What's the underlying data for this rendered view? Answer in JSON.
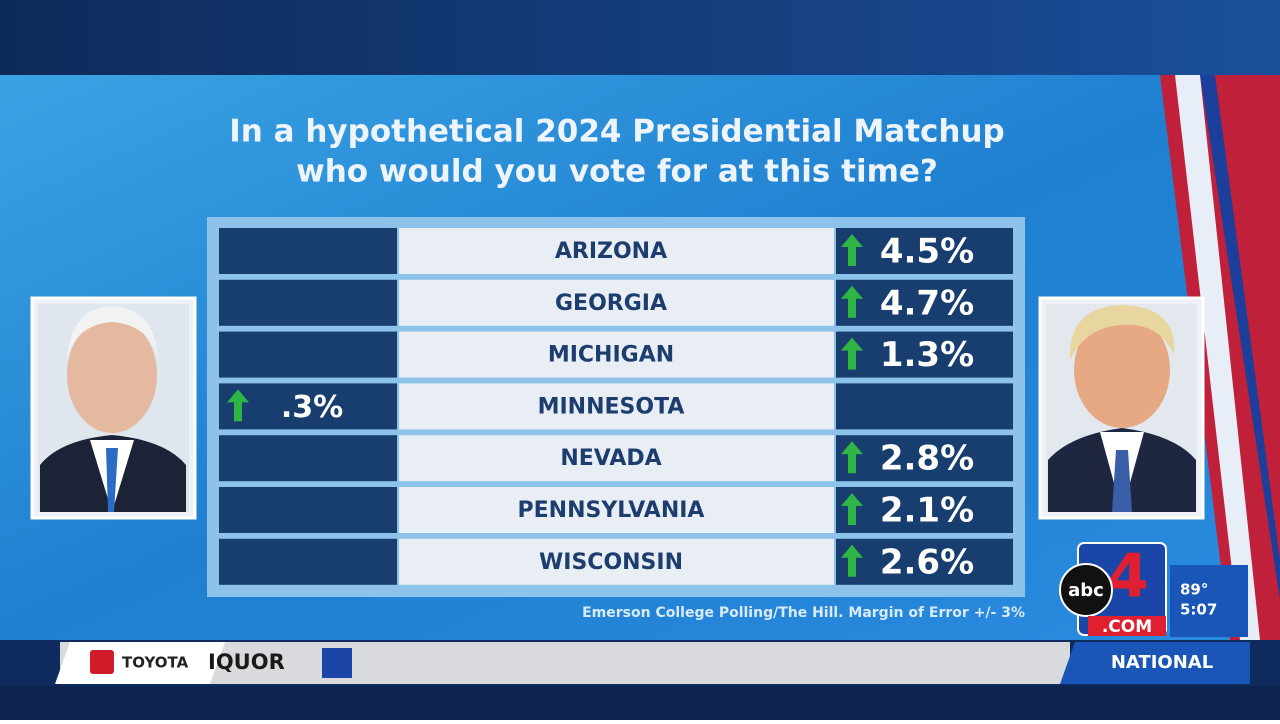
{
  "title": [
    "In a hypothetical 2024 Presidential Matchup",
    "who would you vote for at this time?"
  ],
  "table": {
    "rows": [
      {
        "state": "ARIZONA",
        "right": "4.5%"
      },
      {
        "state": "GEORGIA",
        "right": "4.7%"
      },
      {
        "state": "MICHIGAN",
        "right": "1.3%"
      },
      {
        "state": "MINNESOTA",
        "left": ".3%"
      },
      {
        "state": "NEVADA",
        "right": "2.8%"
      },
      {
        "state": "PENNSYLVANIA",
        "right": "2.1%"
      },
      {
        "state": "WISCONSIN",
        "right": "2.6%"
      }
    ]
  },
  "source": "Emerson College Polling/The Hill. Margin of Error +/- 3%",
  "logo": {
    "network": "abc",
    "channel": "4",
    "site": ".COM"
  },
  "weather": {
    "temp": "89°",
    "time": "5:07"
  },
  "ticker": {
    "sponsor": "TOYOTA",
    "crawl": "IQUOR",
    "section": "NATIONAL"
  }
}
